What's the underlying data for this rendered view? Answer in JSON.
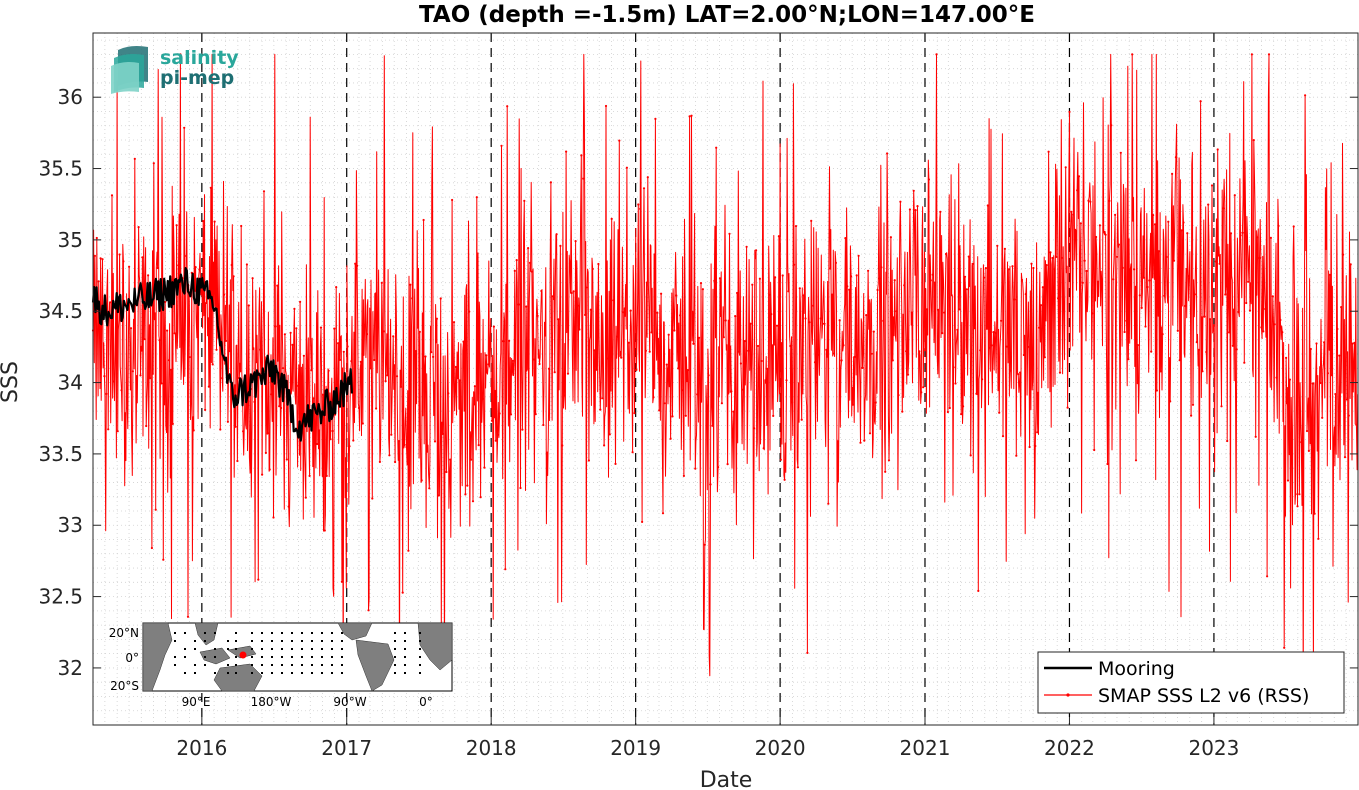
{
  "logo": {
    "line1": "salinity",
    "line2": "pi-mep",
    "color1": "#2aa79b",
    "color2": "#1e6f73"
  },
  "inset_map": {
    "lat_labels": [
      "20°N",
      "0°",
      "20°S"
    ],
    "lon_labels": [
      "90°E",
      "180°W",
      "90°W",
      "0°"
    ],
    "marker_color": "#ff0000",
    "land_color": "#7f7f7f"
  },
  "chart_data": {
    "type": "line",
    "title": "TAO (depth =-1.5m) LAT=2.00°N;LON=147.00°E",
    "xlabel": "Date",
    "ylabel": "SSS",
    "x_tick_labels": [
      "2016",
      "2017",
      "2018",
      "2019",
      "2020",
      "2021",
      "2022",
      "2023"
    ],
    "y_tick_labels": [
      "32",
      "32.5",
      "33",
      "33.5",
      "34",
      "34.5",
      "35",
      "35.5",
      "36"
    ],
    "xlim": [
      "2015-04-01",
      "2023-12-31"
    ],
    "ylim": [
      31.6,
      36.45
    ],
    "grid": "minor dotted, dashed year lines",
    "legend_position": "bottom-right",
    "series": [
      {
        "name": "Mooring",
        "color": "#000000",
        "summary_points": [
          {
            "x": "2015-04-01",
            "y": 34.6
          },
          {
            "x": "2015-05-01",
            "y": 34.5
          },
          {
            "x": "2015-07-01",
            "y": 34.55
          },
          {
            "x": "2015-09-01",
            "y": 34.6
          },
          {
            "x": "2015-12-01",
            "y": 34.7
          },
          {
            "x": "2016-02-01",
            "y": 34.55
          },
          {
            "x": "2016-03-15",
            "y": 33.9
          },
          {
            "x": "2016-05-15",
            "y": 34.0
          },
          {
            "x": "2016-07-01",
            "y": 34.1
          },
          {
            "x": "2016-09-01",
            "y": 33.7
          },
          {
            "x": "2016-11-01",
            "y": 33.8
          },
          {
            "x": "2017-01-15",
            "y": 34.0
          }
        ]
      },
      {
        "name": "SMAP SSS L2 v6 (RSS)",
        "color": "#ff0000",
        "summary_points": [
          {
            "x": "2015-04-01",
            "y": 34.3
          },
          {
            "x": "2015-07-01",
            "y": 34.2
          },
          {
            "x": "2015-10-01",
            "y": 34.4
          },
          {
            "x": "2016-01-01",
            "y": 34.5
          },
          {
            "x": "2016-04-01",
            "y": 34.3
          },
          {
            "x": "2016-07-01",
            "y": 34.0
          },
          {
            "x": "2016-10-01",
            "y": 33.8
          },
          {
            "x": "2017-01-01",
            "y": 34.0
          },
          {
            "x": "2017-04-01",
            "y": 34.1
          },
          {
            "x": "2017-07-01",
            "y": 33.9
          },
          {
            "x": "2017-10-01",
            "y": 33.8
          },
          {
            "x": "2018-01-01",
            "y": 34.1
          },
          {
            "x": "2018-04-01",
            "y": 34.2
          },
          {
            "x": "2018-07-01",
            "y": 34.3
          },
          {
            "x": "2018-10-01",
            "y": 34.2
          },
          {
            "x": "2019-01-01",
            "y": 34.3
          },
          {
            "x": "2019-04-01",
            "y": 34.2
          },
          {
            "x": "2019-07-01",
            "y": 34.0
          },
          {
            "x": "2019-10-01",
            "y": 34.1
          },
          {
            "x": "2020-01-01",
            "y": 34.1
          },
          {
            "x": "2020-04-01",
            "y": 34.3
          },
          {
            "x": "2020-07-01",
            "y": 34.3
          },
          {
            "x": "2020-10-01",
            "y": 34.3
          },
          {
            "x": "2021-01-01",
            "y": 34.6
          },
          {
            "x": "2021-04-01",
            "y": 34.5
          },
          {
            "x": "2021-07-01",
            "y": 34.3
          },
          {
            "x": "2021-10-01",
            "y": 34.2
          },
          {
            "x": "2022-01-01",
            "y": 34.8
          },
          {
            "x": "2022-04-01",
            "y": 34.9
          },
          {
            "x": "2022-07-01",
            "y": 34.8
          },
          {
            "x": "2022-10-01",
            "y": 34.6
          },
          {
            "x": "2023-01-01",
            "y": 34.6
          },
          {
            "x": "2023-04-01",
            "y": 34.8
          },
          {
            "x": "2023-07-01",
            "y": 34.0
          },
          {
            "x": "2023-10-01",
            "y": 33.9
          },
          {
            "x": "2023-12-31",
            "y": 34.2
          }
        ]
      }
    ]
  }
}
